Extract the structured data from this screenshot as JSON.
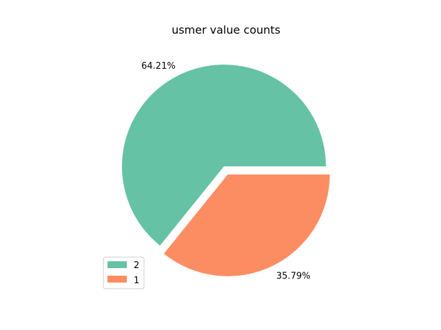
{
  "chart_data": {
    "type": "pie",
    "title": "usmer value counts",
    "slices": [
      {
        "label": "2",
        "value": 64.21,
        "pct_label": "64.21%",
        "color": "#66c2a5",
        "explode": false
      },
      {
        "label": "1",
        "value": 35.79,
        "pct_label": "35.79%",
        "color": "#fc8d62",
        "explode": true
      }
    ],
    "start": "3 o'clock",
    "direction": "counterclockwise",
    "legend": {
      "placement": "lower-left",
      "entries": [
        "2",
        "1"
      ]
    }
  }
}
